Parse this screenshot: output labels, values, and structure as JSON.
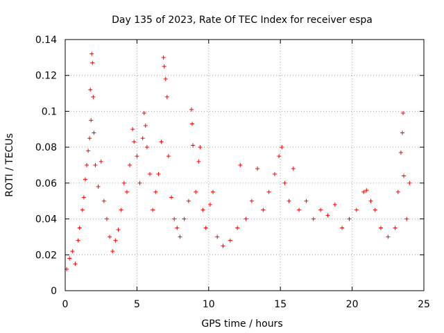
{
  "chart_data": {
    "type": "scatter",
    "title": "Day 135 of 2023, Rate Of TEC Index for receiver espa",
    "xlabel": "GPS time / hours",
    "ylabel": "ROTI / TECUs",
    "xlim": [
      0,
      25
    ],
    "ylim": [
      0,
      0.14
    ],
    "xticks": [
      0,
      5,
      10,
      15,
      20,
      25
    ],
    "yticks": [
      0,
      0.02,
      0.04,
      0.06,
      0.08,
      0.1,
      0.12,
      0.14
    ],
    "xtick_labels": [
      "0",
      "5",
      "10",
      "15",
      "20",
      "25"
    ],
    "ytick_labels": [
      "0",
      "0.02",
      "0.04",
      "0.06",
      "0.08",
      "0.1",
      "0.12",
      "0.14"
    ],
    "grid": true,
    "marker": "+",
    "color": "#ff0000",
    "series": [
      {
        "name": "ROTI",
        "points": [
          [
            0.1,
            0.012
          ],
          [
            0.3,
            0.018
          ],
          [
            0.5,
            0.022
          ],
          [
            0.7,
            0.015
          ],
          [
            0.9,
            0.028
          ],
          [
            1.0,
            0.035
          ],
          [
            1.2,
            0.045
          ],
          [
            1.3,
            0.052
          ],
          [
            1.4,
            0.062
          ],
          [
            1.5,
            0.07
          ],
          [
            1.6,
            0.078
          ],
          [
            1.7,
            0.085
          ],
          [
            1.75,
            0.112
          ],
          [
            1.8,
            0.095
          ],
          [
            1.85,
            0.132
          ],
          [
            1.9,
            0.127
          ],
          [
            1.95,
            0.108
          ],
          [
            2.0,
            0.088
          ],
          [
            2.1,
            0.07
          ],
          [
            2.3,
            0.058
          ],
          [
            2.5,
            0.072
          ],
          [
            2.7,
            0.05
          ],
          [
            2.9,
            0.04
          ],
          [
            3.1,
            0.03
          ],
          [
            3.3,
            0.022
          ],
          [
            3.5,
            0.028
          ],
          [
            3.7,
            0.034
          ],
          [
            3.9,
            0.045
          ],
          [
            4.1,
            0.06
          ],
          [
            4.3,
            0.055
          ],
          [
            4.5,
            0.07
          ],
          [
            4.7,
            0.09
          ],
          [
            4.8,
            0.083
          ],
          [
            5.0,
            0.075
          ],
          [
            5.2,
            0.06
          ],
          [
            5.4,
            0.085
          ],
          [
            5.5,
            0.099
          ],
          [
            5.6,
            0.092
          ],
          [
            5.7,
            0.08
          ],
          [
            5.9,
            0.065
          ],
          [
            6.1,
            0.045
          ],
          [
            6.3,
            0.055
          ],
          [
            6.5,
            0.065
          ],
          [
            6.7,
            0.083
          ],
          [
            6.85,
            0.13
          ],
          [
            6.9,
            0.125
          ],
          [
            7.0,
            0.118
          ],
          [
            7.1,
            0.108
          ],
          [
            7.2,
            0.075
          ],
          [
            7.4,
            0.052
          ],
          [
            7.6,
            0.04
          ],
          [
            7.8,
            0.035
          ],
          [
            8.0,
            0.03
          ],
          [
            8.3,
            0.04
          ],
          [
            8.6,
            0.05
          ],
          [
            8.8,
            0.101
          ],
          [
            8.85,
            0.093
          ],
          [
            8.9,
            0.081
          ],
          [
            9.1,
            0.055
          ],
          [
            9.3,
            0.072
          ],
          [
            9.4,
            0.08
          ],
          [
            9.6,
            0.045
          ],
          [
            9.8,
            0.035
          ],
          [
            10.1,
            0.048
          ],
          [
            10.3,
            0.055
          ],
          [
            10.6,
            0.03
          ],
          [
            11.0,
            0.025
          ],
          [
            11.5,
            0.028
          ],
          [
            12.0,
            0.035
          ],
          [
            12.2,
            0.07
          ],
          [
            12.6,
            0.04
          ],
          [
            13.0,
            0.05
          ],
          [
            13.4,
            0.068
          ],
          [
            13.8,
            0.045
          ],
          [
            14.2,
            0.055
          ],
          [
            14.6,
            0.065
          ],
          [
            14.9,
            0.075
          ],
          [
            15.1,
            0.08
          ],
          [
            15.3,
            0.06
          ],
          [
            15.6,
            0.05
          ],
          [
            15.9,
            0.068
          ],
          [
            16.3,
            0.045
          ],
          [
            16.8,
            0.05
          ],
          [
            17.3,
            0.04
          ],
          [
            17.8,
            0.045
          ],
          [
            18.3,
            0.042
          ],
          [
            18.8,
            0.048
          ],
          [
            19.3,
            0.035
          ],
          [
            19.8,
            0.04
          ],
          [
            20.3,
            0.045
          ],
          [
            20.8,
            0.055
          ],
          [
            21.0,
            0.056
          ],
          [
            21.3,
            0.05
          ],
          [
            21.6,
            0.045
          ],
          [
            22.0,
            0.035
          ],
          [
            22.5,
            0.03
          ],
          [
            23.0,
            0.035
          ],
          [
            23.2,
            0.055
          ],
          [
            23.4,
            0.077
          ],
          [
            23.5,
            0.088
          ],
          [
            23.55,
            0.099
          ],
          [
            23.6,
            0.064
          ],
          [
            23.8,
            0.04
          ],
          [
            24.0,
            0.06
          ]
        ]
      }
    ]
  }
}
